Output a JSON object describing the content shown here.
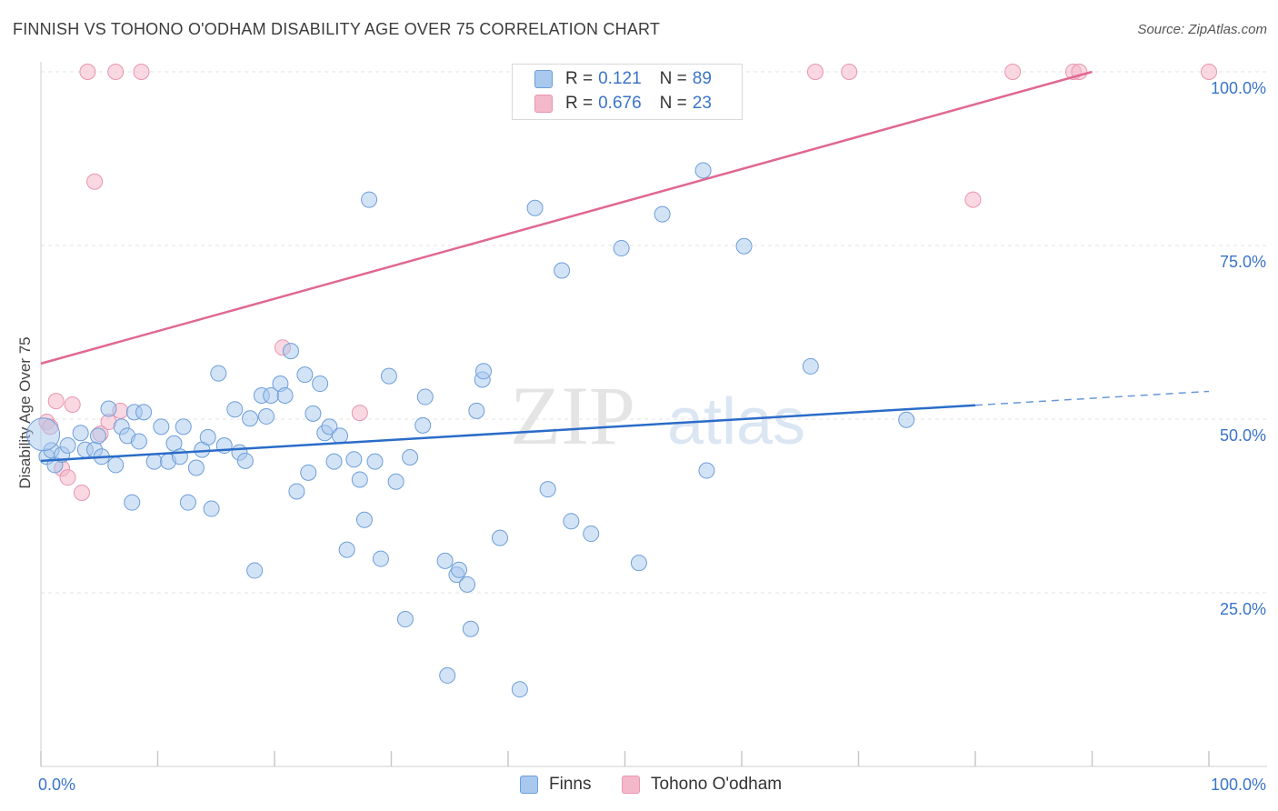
{
  "title": "FINNISH VS TOHONO O'ODHAM DISABILITY AGE OVER 75 CORRELATION CHART",
  "source": "Source: ZipAtlas.com",
  "watermark": {
    "zip": "ZIP",
    "atlas": "atlas"
  },
  "colors": {
    "blue_fill": "#a8c8ee",
    "blue_stroke": "#6d9ed8",
    "blue_line": "#2a6cc8",
    "pink_fill": "#f4b8cb",
    "pink_stroke": "#e895b0",
    "pink_line": "#e06890",
    "tick_text": "#3a74c8",
    "grid": "#e3e3e3"
  },
  "legend": {
    "r_label": "R =",
    "n_label": "N =",
    "finns": {
      "r": "0.121",
      "n": "89"
    },
    "tohono": {
      "r": "0.676",
      "n": "23"
    }
  },
  "chart_data": {
    "type": "scatter",
    "title": "FINNISH VS TOHONO O'ODHAM DISABILITY AGE OVER 75 CORRELATION CHART",
    "xlabel": "",
    "ylabel": "Disability Age Over 75",
    "xlim": [
      0,
      100
    ],
    "ylim": [
      0,
      100
    ],
    "x_tick_labels": [
      "0.0%",
      "100.0%"
    ],
    "y_ticks": [
      25,
      50,
      75,
      100
    ],
    "y_tick_labels": [
      "25.0%",
      "50.0%",
      "75.0%",
      "100.0%"
    ],
    "grid": true,
    "series": [
      {
        "name": "Finns",
        "color": "#a8c8ee",
        "trend": {
          "x": [
            0,
            80
          ],
          "y": [
            44.0,
            52.0
          ],
          "dashed_to": [
            100,
            54.0
          ]
        },
        "points": [
          [
            0.5,
            44.6
          ],
          [
            0.9,
            45.5
          ],
          [
            1.2,
            43.4
          ],
          [
            1.8,
            44.9
          ],
          [
            2.3,
            46.2
          ],
          [
            3.4,
            48.0
          ],
          [
            3.8,
            45.6
          ],
          [
            4.6,
            45.6
          ],
          [
            4.9,
            47.6
          ],
          [
            5.2,
            44.6
          ],
          [
            5.8,
            51.5
          ],
          [
            6.4,
            43.4
          ],
          [
            6.9,
            48.9
          ],
          [
            7.4,
            47.6
          ],
          [
            7.8,
            38.0
          ],
          [
            8.0,
            51.0
          ],
          [
            8.4,
            46.8
          ],
          [
            8.8,
            51.0
          ],
          [
            9.7,
            43.9
          ],
          [
            10.3,
            48.9
          ],
          [
            10.9,
            43.9
          ],
          [
            11.4,
            46.5
          ],
          [
            11.9,
            44.6
          ],
          [
            12.2,
            48.9
          ],
          [
            12.6,
            38.0
          ],
          [
            13.3,
            43.0
          ],
          [
            13.8,
            45.6
          ],
          [
            14.3,
            47.4
          ],
          [
            14.6,
            37.1
          ],
          [
            15.2,
            56.6
          ],
          [
            15.7,
            46.2
          ],
          [
            16.6,
            51.4
          ],
          [
            17.0,
            45.2
          ],
          [
            17.5,
            44.0
          ],
          [
            17.9,
            50.1
          ],
          [
            18.3,
            28.2
          ],
          [
            18.9,
            53.4
          ],
          [
            19.3,
            50.4
          ],
          [
            19.7,
            53.4
          ],
          [
            20.5,
            55.1
          ],
          [
            20.9,
            53.4
          ],
          [
            21.4,
            59.8
          ],
          [
            21.9,
            39.6
          ],
          [
            22.6,
            56.4
          ],
          [
            22.9,
            42.3
          ],
          [
            23.3,
            50.8
          ],
          [
            23.9,
            55.1
          ],
          [
            24.3,
            48.0
          ],
          [
            24.7,
            48.9
          ],
          [
            25.1,
            43.9
          ],
          [
            25.6,
            47.6
          ],
          [
            26.2,
            31.2
          ],
          [
            26.8,
            44.2
          ],
          [
            27.3,
            41.3
          ],
          [
            27.7,
            35.5
          ],
          [
            28.1,
            81.6
          ],
          [
            28.6,
            43.9
          ],
          [
            29.1,
            29.9
          ],
          [
            29.8,
            56.2
          ],
          [
            30.4,
            41.0
          ],
          [
            31.2,
            21.2
          ],
          [
            31.6,
            44.5
          ],
          [
            32.7,
            49.1
          ],
          [
            32.9,
            53.2
          ],
          [
            34.6,
            29.6
          ],
          [
            34.8,
            13.1
          ],
          [
            35.6,
            27.6
          ],
          [
            35.8,
            28.3
          ],
          [
            36.5,
            26.2
          ],
          [
            36.8,
            19.8
          ],
          [
            37.3,
            51.2
          ],
          [
            37.8,
            55.7
          ],
          [
            37.9,
            56.9
          ],
          [
            39.3,
            32.9
          ],
          [
            41.0,
            11.1
          ],
          [
            42.3,
            80.4
          ],
          [
            43.4,
            39.9
          ],
          [
            44.6,
            71.4
          ],
          [
            45.4,
            35.3
          ],
          [
            47.1,
            33.5
          ],
          [
            49.7,
            74.6
          ],
          [
            51.2,
            29.3
          ],
          [
            53.2,
            79.5
          ],
          [
            56.7,
            85.8
          ],
          [
            57.0,
            42.6
          ],
          [
            60.2,
            74.9
          ],
          [
            65.9,
            57.6
          ],
          [
            74.1,
            49.9
          ],
          [
            0.2,
            47.8
          ]
        ]
      },
      {
        "name": "Tohono O'odham",
        "color": "#f4b8cb",
        "trend": {
          "x": [
            0,
            90
          ],
          "y": [
            58.0,
            100.0
          ]
        },
        "points": [
          [
            0.5,
            49.6
          ],
          [
            0.8,
            48.9
          ],
          [
            1.3,
            52.6
          ],
          [
            1.8,
            42.9
          ],
          [
            2.3,
            41.6
          ],
          [
            2.7,
            52.1
          ],
          [
            3.5,
            39.4
          ],
          [
            4.0,
            100.0
          ],
          [
            4.6,
            84.2
          ],
          [
            5.1,
            47.9
          ],
          [
            5.8,
            49.6
          ],
          [
            6.4,
            100.0
          ],
          [
            6.8,
            51.2
          ],
          [
            8.6,
            100.0
          ],
          [
            20.7,
            60.3
          ],
          [
            27.3,
            50.9
          ],
          [
            66.3,
            100.0
          ],
          [
            69.2,
            100.0
          ],
          [
            79.8,
            81.6
          ],
          [
            83.2,
            100.0
          ],
          [
            88.4,
            100.0
          ],
          [
            88.9,
            100.0
          ],
          [
            100.0,
            100.0
          ]
        ]
      }
    ]
  },
  "bottom_legend": {
    "finns": "Finns",
    "tohono": "Tohono O'odham"
  }
}
